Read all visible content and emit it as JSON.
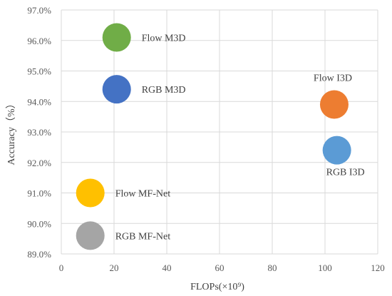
{
  "chart_data": {
    "type": "scatter",
    "title": "",
    "xlabel": "FLOPs(×10⁹)",
    "ylabel": "Accuracy（%）",
    "xlim": [
      0,
      120
    ],
    "ylim": [
      89.0,
      97.0
    ],
    "x_ticks": [
      "0",
      "20",
      "40",
      "60",
      "80",
      "100",
      "120"
    ],
    "y_ticks": [
      "89.0%",
      "90.0%",
      "91.0%",
      "92.0%",
      "93.0%",
      "94.0%",
      "95.0%",
      "96.0%",
      "97.0%"
    ],
    "grid": true,
    "points": [
      {
        "label": "Flow M3D",
        "x": 21,
        "y": 96.1,
        "color": "#70ad47"
      },
      {
        "label": "RGB M3D",
        "x": 21,
        "y": 94.4,
        "color": "#4472c4"
      },
      {
        "label": "Flow I3D",
        "x": 103.5,
        "y": 93.9,
        "color": "#ed7d31"
      },
      {
        "label": "RGB I3D",
        "x": 104.5,
        "y": 92.4,
        "color": "#5b9bd5"
      },
      {
        "label": "Flow MF-Net",
        "x": 11,
        "y": 91.0,
        "color": "#ffc000"
      },
      {
        "label": "RGB MF-Net",
        "x": 11,
        "y": 89.6,
        "color": "#a5a5a5"
      }
    ]
  }
}
